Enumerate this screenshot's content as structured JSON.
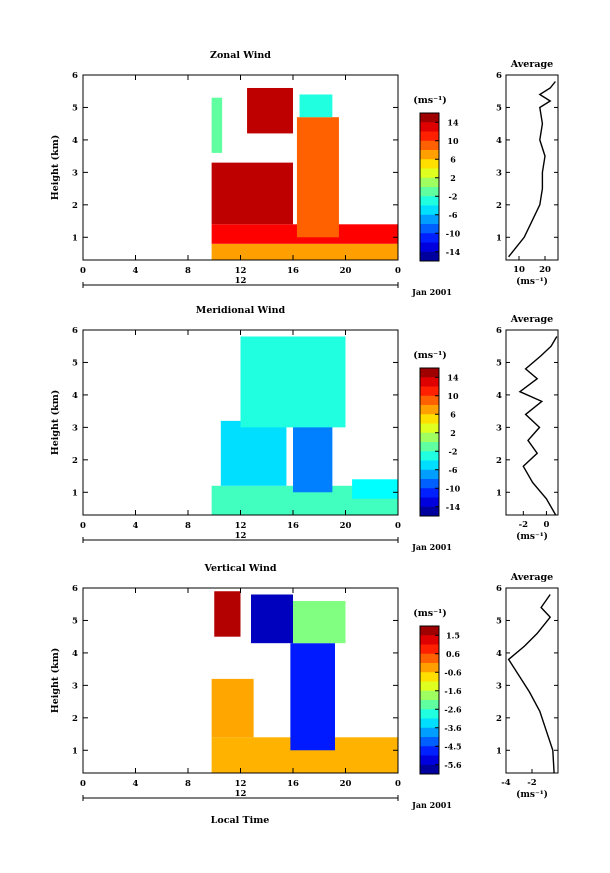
{
  "figure": {
    "xlabel": "Local Time",
    "date_label": "Jan 2001",
    "top_axis_day": "12",
    "colorbar_unit": "(ms⁻¹)",
    "avg_unit": "(ms⁻¹)",
    "ylabel": "Height (km)",
    "avg_title": "Average"
  },
  "chart_data": [
    {
      "type": "heatmap",
      "title": "Zonal Wind",
      "ylabel": "Height (km)",
      "x_ticks": [
        "0",
        "4",
        "8",
        "12",
        "16",
        "20",
        "0"
      ],
      "y_ticks": [
        "1",
        "2",
        "3",
        "4",
        "5",
        "6"
      ],
      "xlim": [
        0,
        24
      ],
      "ylim": [
        0.3,
        6
      ],
      "colorbar": {
        "ticks": [
          "14",
          "10",
          "6",
          "2",
          "-2",
          "-6",
          "-10",
          "-14"
        ],
        "range": [
          -16,
          16
        ]
      },
      "regions": [
        {
          "x": [
            9.8,
            24
          ],
          "y": [
            0.3,
            0.8
          ],
          "value": 7
        },
        {
          "x": [
            9.8,
            24
          ],
          "y": [
            0.8,
            1.4
          ],
          "value": 12
        },
        {
          "x": [
            9.8,
            16
          ],
          "y": [
            1.4,
            3.3
          ],
          "value": 14
        },
        {
          "x": [
            16.3,
            19.5
          ],
          "y": [
            1.0,
            4.7
          ],
          "value": 9
        },
        {
          "x": [
            9.8,
            10.6
          ],
          "y": [
            3.6,
            5.3
          ],
          "value": -1
        },
        {
          "x": [
            12.5,
            16
          ],
          "y": [
            4.2,
            5.6
          ],
          "value": 14
        },
        {
          "x": [
            16.5,
            19
          ],
          "y": [
            4.7,
            5.4
          ],
          "value": -3
        }
      ],
      "average": {
        "x_ticks": [
          "10",
          "20"
        ],
        "xlim": [
          5,
          25
        ],
        "profile": [
          [
            6,
            0.4
          ],
          [
            12,
            1.0
          ],
          [
            15,
            1.5
          ],
          [
            18,
            2.0
          ],
          [
            19,
            2.5
          ],
          [
            19,
            3.0
          ],
          [
            20,
            3.5
          ],
          [
            18,
            4.0
          ],
          [
            19,
            4.5
          ],
          [
            18,
            5.0
          ],
          [
            22,
            5.2
          ],
          [
            18,
            5.4
          ],
          [
            22,
            5.6
          ],
          [
            24,
            5.8
          ]
        ]
      }
    },
    {
      "type": "heatmap",
      "title": "Meridional Wind",
      "ylabel": "Height (km)",
      "x_ticks": [
        "0",
        "4",
        "8",
        "12",
        "16",
        "20",
        "0"
      ],
      "y_ticks": [
        "1",
        "2",
        "3",
        "4",
        "5",
        "6"
      ],
      "xlim": [
        0,
        24
      ],
      "ylim": [
        0.3,
        6
      ],
      "colorbar": {
        "ticks": [
          "14",
          "10",
          "6",
          "2",
          "-2",
          "-6",
          "-10",
          "-14"
        ],
        "range": [
          -16,
          16
        ]
      },
      "regions": [
        {
          "x": [
            9.8,
            24
          ],
          "y": [
            0.3,
            1.2
          ],
          "value": -2
        },
        {
          "x": [
            10.5,
            15.5
          ],
          "y": [
            1.2,
            3.2
          ],
          "value": -5
        },
        {
          "x": [
            16,
            19
          ],
          "y": [
            1.0,
            4.4
          ],
          "value": -8
        },
        {
          "x": [
            12,
            20
          ],
          "y": [
            3.0,
            5.8
          ],
          "value": -3
        },
        {
          "x": [
            20.5,
            24
          ],
          "y": [
            0.8,
            1.4
          ],
          "value": -4
        }
      ],
      "average": {
        "x_ticks": [
          "-2",
          "0"
        ],
        "xlim": [
          -3.5,
          1
        ],
        "profile": [
          [
            0.8,
            0.3
          ],
          [
            0,
            0.8
          ],
          [
            -1.2,
            1.3
          ],
          [
            -2,
            1.8
          ],
          [
            -0.8,
            2.2
          ],
          [
            -1.6,
            2.6
          ],
          [
            -0.6,
            3.0
          ],
          [
            -1.8,
            3.4
          ],
          [
            -0.4,
            3.8
          ],
          [
            -2.3,
            4.1
          ],
          [
            -0.8,
            4.5
          ],
          [
            -1.8,
            4.8
          ],
          [
            -0.5,
            5.2
          ],
          [
            0.4,
            5.5
          ],
          [
            0.9,
            5.8
          ]
        ]
      }
    },
    {
      "type": "heatmap",
      "title": "Vertical Wind",
      "ylabel": "Height (km)",
      "x_ticks": [
        "0",
        "4",
        "8",
        "12",
        "16",
        "20",
        "0"
      ],
      "y_ticks": [
        "1",
        "2",
        "3",
        "4",
        "5",
        "6"
      ],
      "xlim": [
        0,
        24
      ],
      "ylim": [
        0.3,
        6
      ],
      "colorbar": {
        "ticks": [
          "1.5",
          "0.6",
          "-0.6",
          "-1.6",
          "-2.6",
          "-3.6",
          "-4.5",
          "-5.6"
        ],
        "range": [
          -6,
          2
        ]
      },
      "regions": [
        {
          "x": [
            9.8,
            24
          ],
          "y": [
            0.3,
            1.4
          ],
          "value": -0.4
        },
        {
          "x": [
            9.8,
            13
          ],
          "y": [
            1.4,
            3.2
          ],
          "value": -0.3
        },
        {
          "x": [
            15.8,
            19.2
          ],
          "y": [
            1.0,
            4.3
          ],
          "value": -4.8
        },
        {
          "x": [
            12.8,
            16
          ],
          "y": [
            4.3,
            5.8
          ],
          "value": -5.5
        },
        {
          "x": [
            10,
            12
          ],
          "y": [
            4.5,
            5.9
          ],
          "value": 1.6
        },
        {
          "x": [
            16,
            20
          ],
          "y": [
            4.3,
            5.6
          ],
          "value": -2
        }
      ],
      "average": {
        "x_ticks": [
          "-4",
          "-2"
        ],
        "xlim": [
          -4,
          0
        ],
        "profile": [
          [
            -0.3,
            0.3
          ],
          [
            -0.4,
            1.0
          ],
          [
            -0.9,
            1.6
          ],
          [
            -1.4,
            2.2
          ],
          [
            -2.2,
            2.8
          ],
          [
            -3,
            3.3
          ],
          [
            -3.8,
            3.8
          ],
          [
            -2.6,
            4.2
          ],
          [
            -1.6,
            4.6
          ],
          [
            -0.6,
            5.1
          ],
          [
            -1.3,
            5.4
          ],
          [
            -0.6,
            5.8
          ]
        ]
      }
    }
  ]
}
